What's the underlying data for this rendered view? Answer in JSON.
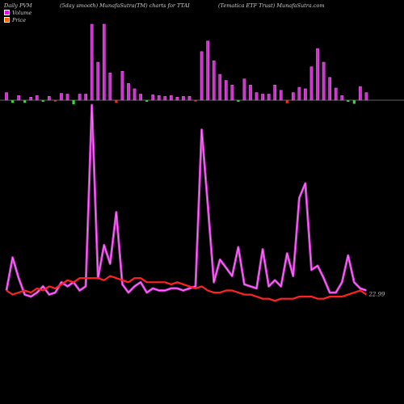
{
  "header": {
    "left": "Daily PVM",
    "middle": "(5day smooth) MunafaSutra(TM) charts for TTAI",
    "right": "(Tematica ETF Trust) MunafaSutra.com"
  },
  "legend": {
    "volume_label": "Volume",
    "price_label": "Price",
    "volume_swatch": "#ff00ff",
    "price_swatch": "#ff6600"
  },
  "colors": {
    "background": "#000000",
    "volume_up": "#cc33cc",
    "volume_up_edge": "#ff66ff",
    "volume_down": "#ff2222",
    "volume_down_alt": "#33dd33",
    "volume_line": "#cc33cc",
    "volume_line_glow": "#ff88ff",
    "price_line": "#ff2222",
    "axis": "#888888"
  },
  "chart_data": {
    "type": "bar+line",
    "title": "",
    "n": 60,
    "volume_bars": [
      {
        "v": 0.1,
        "c": "up"
      },
      {
        "v": -0.1,
        "c": "down_alt"
      },
      {
        "v": 0.06,
        "c": "up"
      },
      {
        "v": -0.1,
        "c": "down_alt"
      },
      {
        "v": 0.04,
        "c": "up"
      },
      {
        "v": 0.06,
        "c": "up"
      },
      {
        "v": -0.06,
        "c": "down_alt"
      },
      {
        "v": 0.05,
        "c": "up"
      },
      {
        "v": -0.05,
        "c": "down"
      },
      {
        "v": 0.09,
        "c": "up"
      },
      {
        "v": 0.08,
        "c": "up"
      },
      {
        "v": -0.16,
        "c": "down_alt"
      },
      {
        "v": 0.08,
        "c": "up"
      },
      {
        "v": 0.08,
        "c": "up"
      },
      {
        "v": 1.0,
        "c": "up"
      },
      {
        "v": 0.5,
        "c": "up"
      },
      {
        "v": 1.0,
        "c": "up"
      },
      {
        "v": 0.36,
        "c": "up"
      },
      {
        "v": -0.1,
        "c": "down"
      },
      {
        "v": 0.38,
        "c": "up"
      },
      {
        "v": 0.22,
        "c": "up"
      },
      {
        "v": 0.15,
        "c": "up"
      },
      {
        "v": 0.08,
        "c": "up"
      },
      {
        "v": -0.06,
        "c": "down_alt"
      },
      {
        "v": 0.07,
        "c": "up"
      },
      {
        "v": 0.06,
        "c": "up"
      },
      {
        "v": 0.05,
        "c": "up"
      },
      {
        "v": 0.06,
        "c": "up"
      },
      {
        "v": 0.04,
        "c": "up"
      },
      {
        "v": 0.05,
        "c": "up"
      },
      {
        "v": 0.05,
        "c": "up"
      },
      {
        "v": -0.05,
        "c": "down"
      },
      {
        "v": 0.64,
        "c": "up"
      },
      {
        "v": 0.78,
        "c": "up"
      },
      {
        "v": 0.52,
        "c": "up"
      },
      {
        "v": 0.34,
        "c": "up"
      },
      {
        "v": 0.26,
        "c": "up"
      },
      {
        "v": 0.2,
        "c": "up"
      },
      {
        "v": -0.06,
        "c": "down_alt"
      },
      {
        "v": 0.28,
        "c": "up"
      },
      {
        "v": 0.2,
        "c": "up"
      },
      {
        "v": 0.1,
        "c": "up"
      },
      {
        "v": 0.08,
        "c": "up"
      },
      {
        "v": 0.08,
        "c": "up"
      },
      {
        "v": 0.2,
        "c": "up"
      },
      {
        "v": 0.13,
        "c": "up"
      },
      {
        "v": -0.12,
        "c": "down"
      },
      {
        "v": 0.1,
        "c": "up"
      },
      {
        "v": 0.17,
        "c": "up"
      },
      {
        "v": 0.15,
        "c": "up"
      },
      {
        "v": 0.44,
        "c": "up"
      },
      {
        "v": 0.68,
        "c": "up"
      },
      {
        "v": 0.5,
        "c": "up"
      },
      {
        "v": 0.3,
        "c": "up"
      },
      {
        "v": 0.16,
        "c": "up"
      },
      {
        "v": 0.06,
        "c": "up"
      },
      {
        "v": -0.06,
        "c": "down_alt"
      },
      {
        "v": -0.14,
        "c": "down_alt"
      },
      {
        "v": 0.18,
        "c": "up"
      },
      {
        "v": 0.1,
        "c": "up"
      }
    ],
    "volume_line": [
      0.1,
      0.26,
      0.16,
      0.08,
      0.07,
      0.09,
      0.12,
      0.08,
      0.09,
      0.14,
      0.12,
      0.14,
      0.1,
      0.12,
      1.0,
      0.16,
      0.32,
      0.23,
      0.48,
      0.13,
      0.09,
      0.12,
      0.14,
      0.09,
      0.11,
      0.1,
      0.1,
      0.11,
      0.11,
      0.1,
      0.11,
      0.12,
      0.88,
      0.52,
      0.14,
      0.25,
      0.21,
      0.17,
      0.31,
      0.13,
      0.12,
      0.11,
      0.3,
      0.12,
      0.15,
      0.12,
      0.28,
      0.17,
      0.55,
      0.62,
      0.2,
      0.22,
      0.16,
      0.09,
      0.09,
      0.14,
      0.27,
      0.14,
      0.11,
      0.1
    ],
    "price_line": [
      0.1,
      0.08,
      0.09,
      0.1,
      0.09,
      0.11,
      0.1,
      0.12,
      0.11,
      0.13,
      0.15,
      0.14,
      0.16,
      0.16,
      0.16,
      0.16,
      0.15,
      0.17,
      0.16,
      0.15,
      0.14,
      0.16,
      0.16,
      0.14,
      0.14,
      0.14,
      0.14,
      0.13,
      0.14,
      0.13,
      0.12,
      0.11,
      0.12,
      0.1,
      0.09,
      0.09,
      0.1,
      0.1,
      0.09,
      0.08,
      0.08,
      0.07,
      0.06,
      0.06,
      0.05,
      0.06,
      0.06,
      0.06,
      0.07,
      0.07,
      0.07,
      0.06,
      0.06,
      0.07,
      0.07,
      0.07,
      0.08,
      0.09,
      0.1,
      0.08
    ],
    "last_label": "22.99"
  }
}
